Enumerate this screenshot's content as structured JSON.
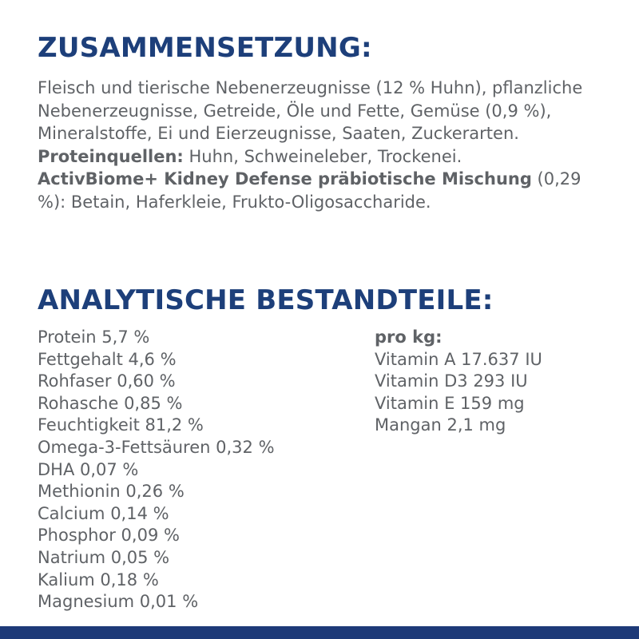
{
  "composition": {
    "heading": "ZUSAMMENSETZUNG:",
    "ingredients_text": "Fleisch und tierische Nebenerzeugnisse (12 % Huhn), pflanzliche Nebenerzeugnisse, Getreide, Öle und Fette, Gemüse (0,9 %), Mineralstoffe, Ei und Eierzeugnisse, Saaten, Zuckerarten.",
    "protein_sources_label": "Proteinquellen:",
    "protein_sources_text": " Huhn, Schweineleber, Trockenei.",
    "prebiotic_label": "ActivBiome+ Kidney Defense präbiotische Mischung",
    "prebiotic_text": " (0,29 %): Betain, Haferkleie, Frukto-Oligosaccharide."
  },
  "analysis": {
    "heading": "ANALYTISCHE BESTANDTEILE:",
    "left": [
      "Protein 5,7 %",
      "Fettgehalt 4,6 %",
      "Rohfaser 0,60 %",
      "Rohasche 0,85 %",
      "Feuchtigkeit 81,2 %",
      "Omega-3-Fettsäuren 0,32 %",
      "DHA 0,07 %",
      "Methionin 0,26 %",
      "Calcium 0,14 %",
      "Phosphor 0,09 %",
      "Natrium 0,05 %",
      "Kalium 0,18 %",
      "Magnesium 0,01 %"
    ],
    "right_label": "pro kg:",
    "right": [
      "Vitamin A 17.637 IU",
      "Vitamin D3 293 IU",
      "Vitamin E 159 mg",
      "Mangan 2,1 mg"
    ]
  },
  "colors": {
    "heading": "#1d3f7a",
    "body_text": "#5f6266",
    "bottom_bar": "#1d3a78"
  }
}
